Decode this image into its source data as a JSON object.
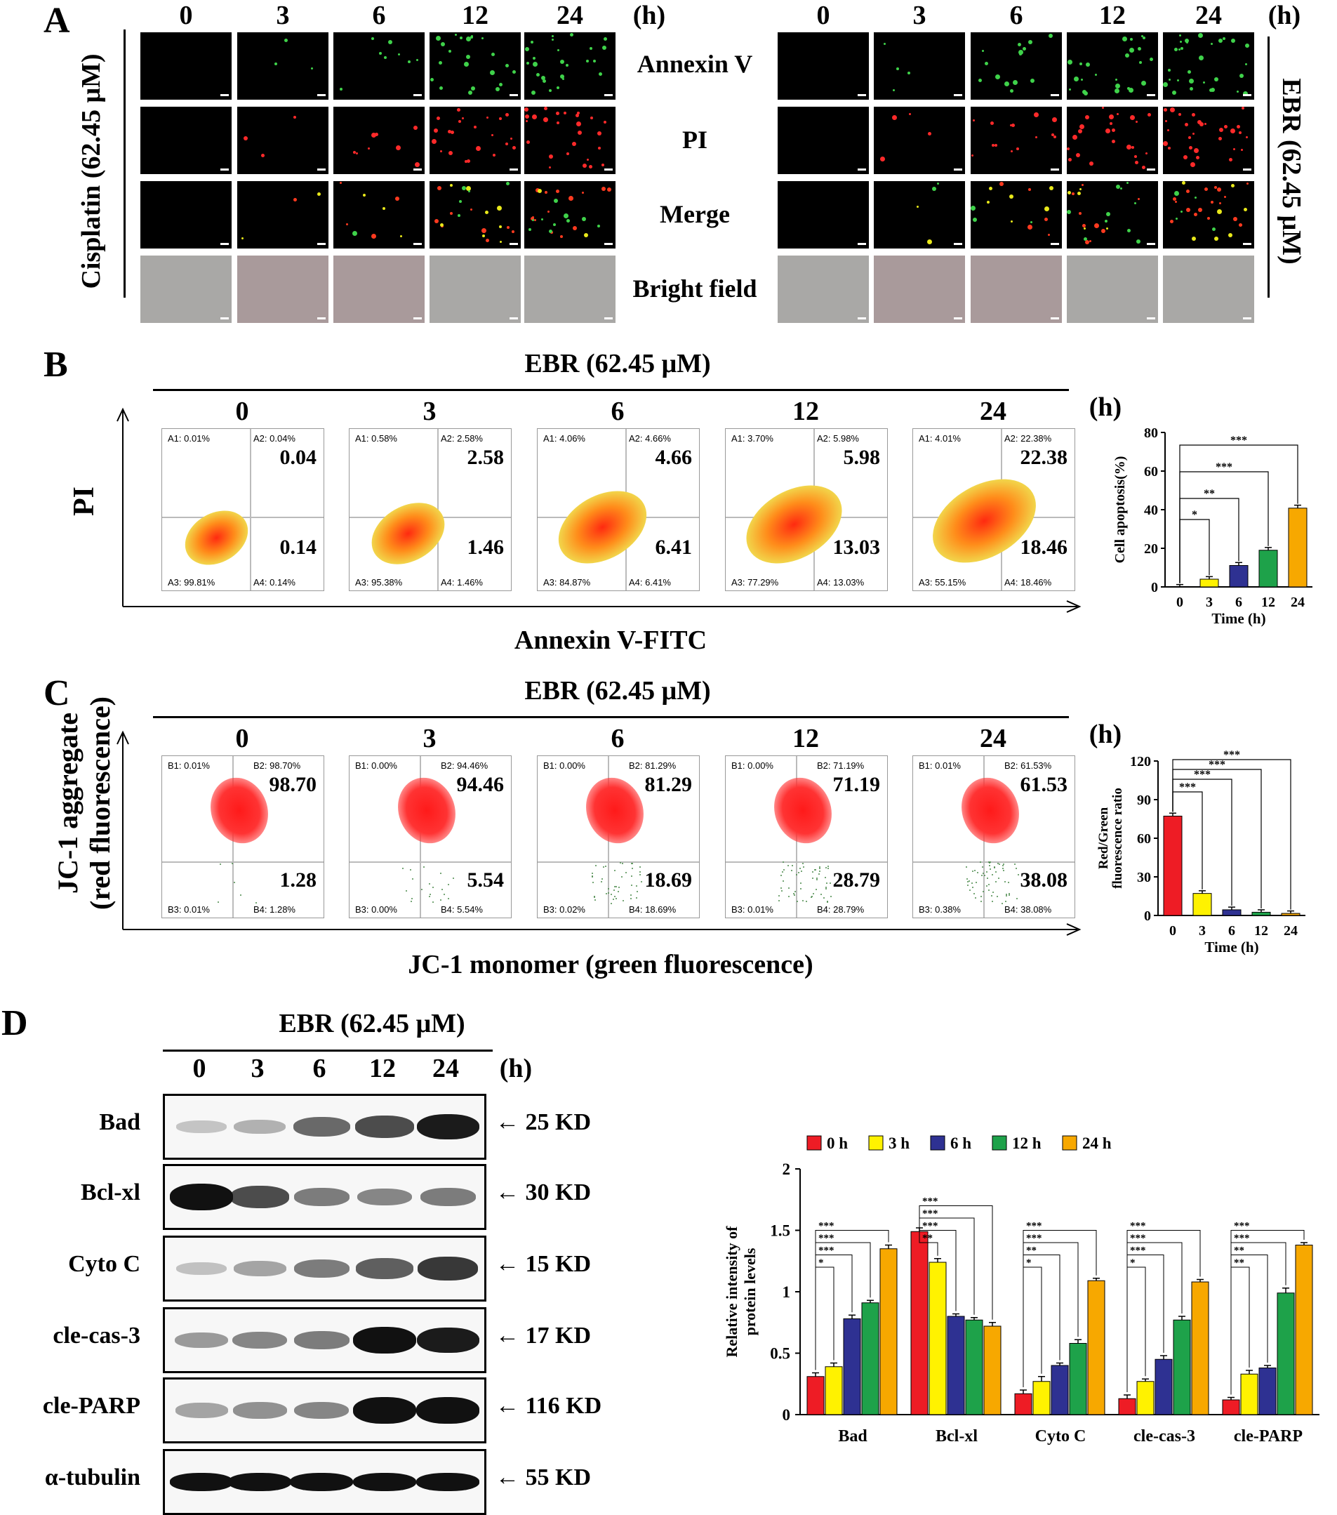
{
  "panels": {
    "a": "A",
    "b": "B",
    "c": "C",
    "d": "D"
  },
  "panel_a": {
    "times": [
      "0",
      "3",
      "6",
      "12",
      "24"
    ],
    "unit": "(h)",
    "left_label": "Cisplatin (62.45 μM)",
    "right_label": "EBR (62.45 μM)",
    "rows": [
      "Annexin V",
      "PI",
      "Merge",
      "Bright field"
    ]
  },
  "panel_b": {
    "title": "EBR (62.45 μM)",
    "times": [
      "0",
      "3",
      "6",
      "12",
      "24"
    ],
    "unit": "(h)",
    "ylabel": "PI",
    "xlabel": "Annexin V-FITC",
    "plots": [
      {
        "a1": "A1: 0.01%",
        "a2": "A2: 0.04%",
        "a3": "A3: 99.81%",
        "a4": "A4: 0.14%",
        "late": "0.04",
        "early": "0.14"
      },
      {
        "a1": "A1: 0.58%",
        "a2": "A2: 2.58%",
        "a3": "A3: 95.38%",
        "a4": "A4: 1.46%",
        "late": "2.58",
        "early": "1.46"
      },
      {
        "a1": "A1: 4.06%",
        "a2": "A2: 4.66%",
        "a3": "A3: 84.87%",
        "a4": "A4: 6.41%",
        "late": "4.66",
        "early": "6.41"
      },
      {
        "a1": "A1: 3.70%",
        "a2": "A2: 5.98%",
        "a3": "A3: 77.29%",
        "a4": "A4: 13.03%",
        "late": "5.98",
        "early": "13.03"
      },
      {
        "a1": "A1: 4.01%",
        "a2": "A2: 22.38%",
        "a3": "A3: 55.15%",
        "a4": "A4: 18.46%",
        "late": "22.38",
        "early": "18.46"
      }
    ]
  },
  "panel_c": {
    "title": "EBR (62.45 μM)",
    "times": [
      "0",
      "3",
      "6",
      "12",
      "24"
    ],
    "unit": "(h)",
    "ylabel_1": "JC-1 aggregate",
    "ylabel_2": "(red fluorescence)",
    "xlabel": "JC-1 monomer (green fluorescence)",
    "plots": [
      {
        "b1": "B1: 0.01%",
        "b2": "B2: 98.70%",
        "b3": "B3: 0.01%",
        "b4": "B4: 1.28%",
        "high": "98.70",
        "low": "1.28"
      },
      {
        "b1": "B1: 0.00%",
        "b2": "B2: 94.46%",
        "b3": "B3: 0.00%",
        "b4": "B4: 5.54%",
        "high": "94.46",
        "low": "5.54"
      },
      {
        "b1": "B1: 0.00%",
        "b2": "B2: 81.29%",
        "b3": "B3: 0.02%",
        "b4": "B4: 18.69%",
        "high": "81.29",
        "low": "18.69"
      },
      {
        "b1": "B1: 0.00%",
        "b2": "B2: 71.19%",
        "b3": "B3: 0.01%",
        "b4": "B4: 28.79%",
        "high": "71.19",
        "low": "28.79"
      },
      {
        "b1": "B1: 0.01%",
        "b2": "B2: 61.53%",
        "b3": "B3: 0.38%",
        "b4": "B4: 38.08%",
        "high": "61.53",
        "low": "38.08"
      }
    ]
  },
  "panel_d": {
    "title": "EBR (62.45 μM)",
    "times": [
      "0",
      "3",
      "6",
      "12",
      "24"
    ],
    "unit": "(h)",
    "proteins": [
      {
        "name": "Bad",
        "kd": "← 25 KD"
      },
      {
        "name": "Bcl-xl",
        "kd": "← 30 KD"
      },
      {
        "name": "Cyto C",
        "kd": "← 15 KD"
      },
      {
        "name": "cle-cas-3",
        "kd": "← 17 KD"
      },
      {
        "name": "cle-PARP",
        "kd": "← 116 KD"
      },
      {
        "name": "α-tubulin",
        "kd": "← 55 KD"
      }
    ]
  },
  "colors": {
    "c0": "#ee1c25",
    "c3": "#fff200",
    "c6": "#2e3192",
    "c12": "#1ea24a",
    "c24": "#f7a800"
  },
  "chart_data": [
    {
      "type": "bar",
      "id": "apoptosis",
      "categories": [
        "0",
        "3",
        "6",
        "12",
        "24"
      ],
      "values": [
        0.2,
        4.0,
        11.1,
        19.0,
        40.8
      ],
      "errors": [
        0.3,
        0.6,
        0.8,
        0.7,
        0.8
      ],
      "ylabel": "Cell apoptosis(%)",
      "xlabel": "Time (h)",
      "ylim": [
        0,
        80
      ],
      "yticks": [
        "0",
        "20",
        "40",
        "60",
        "80"
      ],
      "significance": [
        {
          "to": "3",
          "mark": "*"
        },
        {
          "to": "6",
          "mark": "**"
        },
        {
          "to": "12",
          "mark": "***"
        },
        {
          "to": "24",
          "mark": "***"
        }
      ]
    },
    {
      "type": "bar",
      "id": "jc1",
      "categories": [
        "0",
        "3",
        "6",
        "12",
        "24"
      ],
      "values": [
        77.2,
        17.1,
        4.4,
        2.5,
        1.6
      ],
      "errors": [
        1.2,
        1.0,
        1.0,
        0.8,
        0.8
      ],
      "ylabel_1": "Red/Green",
      "ylabel_2": "fluorescence ratio",
      "xlabel": "Time (h)",
      "ylim": [
        0,
        120
      ],
      "yticks": [
        "0",
        "30",
        "60",
        "90",
        "120"
      ],
      "significance": [
        {
          "to": "3",
          "mark": "***"
        },
        {
          "to": "6",
          "mark": "***"
        },
        {
          "to": "12",
          "mark": "***"
        },
        {
          "to": "24",
          "mark": "***"
        }
      ]
    },
    {
      "type": "bar",
      "id": "protein",
      "categories": [
        "Bad",
        "Bcl-xl",
        "Cyto C",
        "cle-cas-3",
        "cle-PARP"
      ],
      "ylabel_1": "Relative intensity of",
      "ylabel_2": "protein levels",
      "ylim": [
        0,
        2
      ],
      "yticks": [
        "0",
        "0.5",
        "1",
        "1.5",
        "2"
      ],
      "legend": "top",
      "series": [
        {
          "name": "0 h",
          "values": [
            0.31,
            1.49,
            0.17,
            0.13,
            0.12
          ],
          "errors": [
            0.03,
            0.03,
            0.03,
            0.03,
            0.02
          ]
        },
        {
          "name": "3 h",
          "values": [
            0.39,
            1.24,
            0.27,
            0.27,
            0.33
          ],
          "errors": [
            0.03,
            0.03,
            0.04,
            0.02,
            0.03
          ]
        },
        {
          "name": "6 h",
          "values": [
            0.78,
            0.8,
            0.4,
            0.45,
            0.38
          ],
          "errors": [
            0.03,
            0.02,
            0.02,
            0.03,
            0.02
          ]
        },
        {
          "name": "12 h",
          "values": [
            0.91,
            0.77,
            0.58,
            0.77,
            0.99
          ],
          "errors": [
            0.02,
            0.02,
            0.03,
            0.03,
            0.04
          ]
        },
        {
          "name": "24 h",
          "values": [
            1.35,
            0.72,
            1.09,
            1.08,
            1.38
          ],
          "errors": [
            0.03,
            0.03,
            0.02,
            0.02,
            0.02
          ]
        }
      ],
      "significance": [
        [
          "*",
          "***",
          "***",
          "***"
        ],
        [
          "**",
          "***",
          "***",
          "***"
        ],
        [
          "*",
          "**",
          "***",
          "***"
        ],
        [
          "*",
          "***",
          "***",
          "***"
        ],
        [
          "**",
          "**",
          "***",
          "***"
        ]
      ]
    }
  ]
}
